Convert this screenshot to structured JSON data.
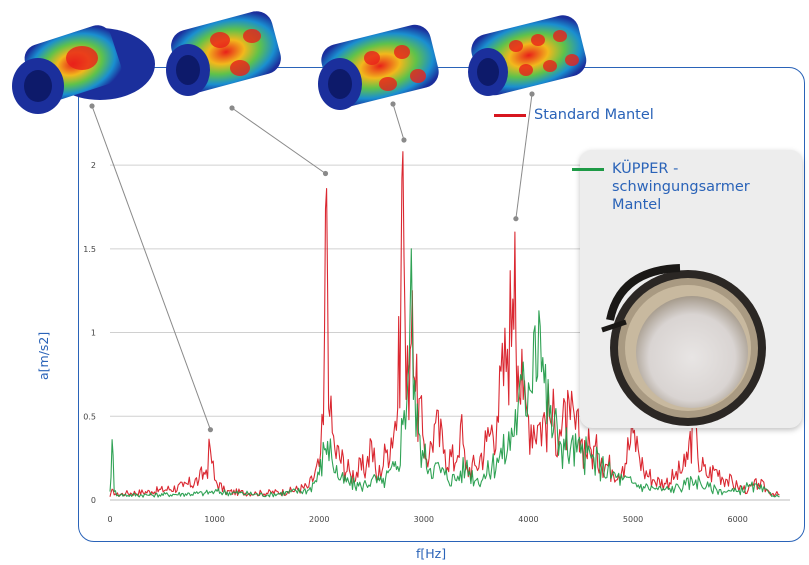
{
  "chart_data": {
    "type": "line",
    "title": "",
    "xlabel": "f[Hz]",
    "ylabel": "a[m/s2]",
    "xlim": [
      0,
      6500
    ],
    "ylim": [
      0,
      2.15
    ],
    "x_ticks": [
      "0",
      "1000",
      "2000",
      "3000",
      "4000",
      "5000",
      "6000"
    ],
    "y_ticks": [
      "0",
      "0.5",
      "1",
      "1.5",
      "2"
    ],
    "grid": true,
    "legend_position": "right",
    "series": [
      {
        "name": "Standard Mantel",
        "color": "#d7161f",
        "x": [
          0,
          30,
          60,
          150,
          400,
          700,
          850,
          920,
          960,
          1000,
          1100,
          1400,
          1700,
          1900,
          2000,
          2040,
          2070,
          2100,
          2150,
          2300,
          2450,
          2500,
          2550,
          2650,
          2750,
          2780,
          2800,
          2830,
          2870,
          2890,
          2920,
          3000,
          3050,
          3100,
          3200,
          3300,
          3350,
          3400,
          3500,
          3600,
          3700,
          3800,
          3850,
          3870,
          3900,
          3950,
          4000,
          4100,
          4200,
          4300,
          4400,
          4500,
          4600,
          4700,
          4800,
          4900,
          5000,
          5050,
          5100,
          5200,
          5300,
          5400,
          5500,
          5580,
          5620,
          5700,
          5800,
          5900,
          6000,
          6100,
          6200,
          6300,
          6400
        ],
        "y": [
          0.02,
          0.06,
          0.03,
          0.04,
          0.05,
          0.08,
          0.12,
          0.18,
          0.3,
          0.12,
          0.05,
          0.04,
          0.05,
          0.08,
          0.2,
          0.45,
          1.86,
          0.5,
          0.3,
          0.15,
          0.2,
          0.35,
          0.12,
          0.3,
          0.55,
          1.2,
          2.08,
          0.6,
          0.9,
          1.25,
          0.65,
          0.35,
          0.25,
          0.45,
          0.3,
          0.22,
          0.45,
          0.18,
          0.2,
          0.35,
          0.5,
          0.9,
          1.2,
          1.6,
          0.8,
          0.6,
          0.5,
          0.45,
          0.5,
          0.42,
          0.48,
          0.35,
          0.3,
          0.25,
          0.18,
          0.2,
          0.4,
          0.3,
          0.18,
          0.12,
          0.1,
          0.14,
          0.2,
          0.45,
          0.25,
          0.15,
          0.18,
          0.12,
          0.08,
          0.06,
          0.1,
          0.05,
          0.03
        ]
      },
      {
        "name": "KÜPPER - schwingungsarmer Mantel",
        "color": "#1e9a46",
        "x": [
          0,
          20,
          40,
          100,
          400,
          900,
          1000,
          1500,
          1900,
          2000,
          2050,
          2080,
          2120,
          2200,
          2400,
          2500,
          2600,
          2750,
          2800,
          2850,
          2880,
          2900,
          2950,
          3000,
          3100,
          3200,
          3300,
          3400,
          3500,
          3600,
          3700,
          3800,
          3900,
          4000,
          4050,
          4100,
          4150,
          4200,
          4300,
          4400,
          4500,
          4600,
          4700,
          4800,
          4900,
          5000,
          5100,
          5200,
          5300,
          5400,
          5500,
          5600,
          5700,
          5800,
          5900,
          6000,
          6100,
          6200,
          6300,
          6400
        ],
        "y": [
          0.05,
          0.36,
          0.05,
          0.03,
          0.03,
          0.04,
          0.05,
          0.03,
          0.06,
          0.15,
          0.3,
          0.35,
          0.25,
          0.12,
          0.08,
          0.12,
          0.1,
          0.2,
          0.45,
          0.75,
          1.5,
          0.6,
          0.4,
          0.25,
          0.2,
          0.15,
          0.12,
          0.2,
          0.12,
          0.15,
          0.25,
          0.3,
          0.55,
          0.7,
          1.0,
          1.13,
          0.7,
          0.5,
          0.35,
          0.3,
          0.28,
          0.25,
          0.2,
          0.15,
          0.12,
          0.1,
          0.08,
          0.07,
          0.06,
          0.07,
          0.09,
          0.12,
          0.08,
          0.06,
          0.05,
          0.05,
          0.08,
          0.07,
          0.04,
          0.02
        ]
      }
    ]
  },
  "legend": {
    "entries": [
      {
        "label": "Standard Mantel",
        "color": "#d7161f"
      },
      {
        "label": "KÜPPER - schwingungsarmer Mantel",
        "color": "#1e9a46"
      }
    ]
  },
  "colors": {
    "frame": "#2a63b8",
    "label_text": "#2a63b8",
    "grid": "#d0d0d0",
    "tick_text": "#444444"
  },
  "images": {
    "mode_shapes": [
      "fe-mode-shape-1-icon",
      "fe-mode-shape-2-icon",
      "fe-mode-shape-3-icon",
      "fe-mode-shape-4-icon"
    ],
    "product_photo": "sleeve-photo-icon"
  },
  "annotations": [
    {
      "from_image": 1,
      "to_x": 960,
      "to_y": 0.42
    },
    {
      "from_image": 2,
      "to_x": 2060,
      "to_y": 1.95
    },
    {
      "from_image": 3,
      "to_x": 2810,
      "to_y": 2.15
    },
    {
      "from_image": 4,
      "to_x": 3880,
      "to_y": 1.68
    }
  ]
}
